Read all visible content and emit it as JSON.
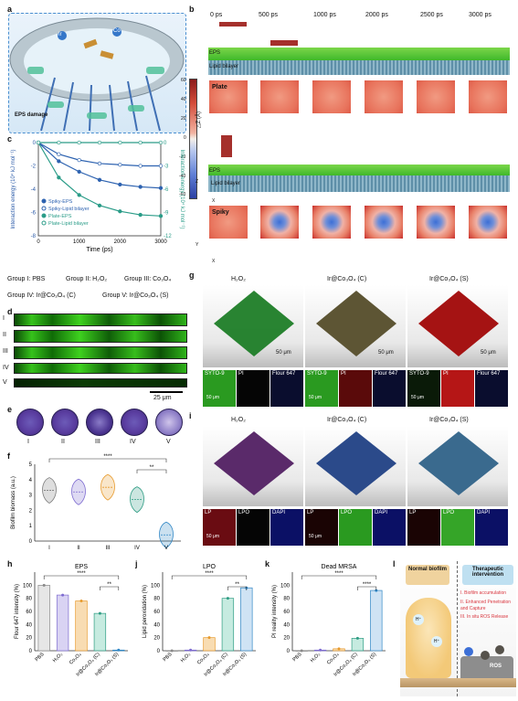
{
  "panels": {
    "a": "a",
    "b": "b",
    "c": "c",
    "d": "d",
    "e": "e",
    "f": "f",
    "g": "g",
    "h": "h",
    "i": "i",
    "j": "j",
    "k": "k",
    "l": "l"
  },
  "a": {
    "eps_damage_label": "EPS damage",
    "ion1": "Ir",
    "ion2": "Co"
  },
  "b": {
    "times": [
      "0 ps",
      "500 ps",
      "1000 ps",
      "2000 ps",
      "2500 ps",
      "3000 ps"
    ],
    "eps": "EPS",
    "lipid": "Lipid bilayer",
    "plate": "Plate",
    "spiky": "Spiky",
    "colorbar_label": "△Z (Å)",
    "colorbar_ticks": [
      "60",
      "40",
      "20",
      "0",
      "-20",
      "-40",
      "-60"
    ],
    "axis_z": "Z",
    "axis_x": "X",
    "axis_y": "Y"
  },
  "c": {
    "ylabel_left": "Interaction energy (10⁴ kJ mol⁻¹)",
    "ylabel_right": "Interaction energy (10⁴ kJ mol⁻¹)",
    "xlabel": "Time (ps)",
    "legend": [
      "Spiky-EPS",
      "Spiky-Lipid bilayer",
      "Plate-EPS",
      "Plate-Lipid bilayer"
    ],
    "xticks": [
      "0",
      "1000",
      "2000",
      "3000"
    ],
    "yticks_left": [
      "0",
      "-2",
      "-4",
      "-6",
      "-8"
    ],
    "yticks_right": [
      "0",
      "-3",
      "-6",
      "-9",
      "-12"
    ]
  },
  "groups": {
    "row1": [
      "Group I: PBS",
      "Group II: H₂O₂",
      "Group III: Co₃O₄"
    ],
    "row2": [
      "Group IV: Ir@Co₃O₄ (C)",
      "Group V: Ir@Co₃O₄ (S)"
    ]
  },
  "d": {
    "rows": [
      "I",
      "II",
      "III",
      "IV",
      "V"
    ],
    "scale": "25 μm"
  },
  "e": {
    "labels": [
      "I",
      "II",
      "III",
      "IV",
      "V"
    ]
  },
  "f": {
    "ylabel": "Biofilm biomass (a.u.)",
    "yticks": [
      "0",
      "1",
      "2",
      "3",
      "4",
      "5"
    ],
    "xlabels": [
      "I",
      "II",
      "III",
      "IV",
      "V"
    ],
    "sig1": "****",
    "sig2": "**",
    "colors": [
      "#7c7c7c",
      "#7d6bd0",
      "#e79a2c",
      "#2e9c83",
      "#2f86c5"
    ]
  },
  "g": {
    "titles": [
      "H₂O₂",
      "Ir@Co₃O₄ (C)",
      "Ir@Co₃O₄ (S)"
    ],
    "scale": "50 μm",
    "chips": [
      "SYTO-9",
      "PI",
      "Flour 647"
    ]
  },
  "i": {
    "titles": [
      "H₂O₂",
      "Ir@Co₃O₄ (C)",
      "Ir@Co₃O₄ (S)"
    ],
    "scale": "50 μm",
    "chips": [
      "LP",
      "LPO",
      "DAPI"
    ]
  },
  "h": {
    "title": "EPS",
    "ylabel": "Flour 647 intensity (%)",
    "yticks": [
      "0",
      "20",
      "40",
      "60",
      "80",
      "100"
    ],
    "xlabels": [
      "PBS",
      "H₂O₂",
      "Co₃O₄",
      "Ir@Co₃O₄ (C)",
      "Ir@Co₃O₄ (S)"
    ],
    "sig1": "****",
    "sig2": "**"
  },
  "j": {
    "title": "LPO",
    "ylabel": "Lipid peroxidation (%)",
    "yticks": [
      "0",
      "20",
      "40",
      "60",
      "80",
      "100"
    ],
    "xlabels": [
      "PBS",
      "H₂O₂",
      "Co₃O₄",
      "Ir@Co₃O₄ (C)",
      "Ir@Co₃O₄ (S)"
    ],
    "sig1": "****",
    "sig2": "**"
  },
  "k": {
    "title": "Dead MRSA",
    "ylabel": "PI reality intensity (%)",
    "yticks": [
      "0",
      "20",
      "40",
      "60",
      "80",
      "100"
    ],
    "xlabels": [
      "PBS",
      "H₂O₂",
      "Co₃O₄",
      "Ir@Co₃O₄ (C)",
      "Ir@Co₃O₄ (S)"
    ],
    "sig1": "****",
    "sig2": "****"
  },
  "l": {
    "normal": "Normal biofilm",
    "therapeutic": "Therapeutic intervention",
    "steps": [
      "I. Biofilm accumulation",
      "II. Enhanced Penetration and Capture",
      "III. In situ ROS Release"
    ],
    "hplus": "H⁺",
    "ros": "ROS"
  },
  "chart_data": [
    {
      "type": "line",
      "title": "",
      "xlabel": "Time (ps)",
      "ylabel": "Interaction energy (10⁴ kJ mol⁻¹)",
      "x": [
        0,
        500,
        1000,
        1500,
        2000,
        2500,
        3000
      ],
      "series": [
        {
          "name": "Spiky-EPS",
          "axis": "left",
          "values": [
            0,
            -1.6,
            -2.5,
            -3.2,
            -3.6,
            -3.8,
            -3.9
          ]
        },
        {
          "name": "Spiky-Lipid bilayer",
          "axis": "left",
          "values": [
            0,
            -1.0,
            -1.5,
            -1.8,
            -1.9,
            -2.0,
            -2.0
          ]
        },
        {
          "name": "Plate-EPS",
          "axis": "left",
          "values": [
            0,
            -3.0,
            -4.5,
            -5.4,
            -5.9,
            -6.2,
            -6.3
          ]
        },
        {
          "name": "Plate-Lipid bilayer",
          "axis": "right",
          "values": [
            0,
            0,
            0,
            0,
            0,
            0,
            0
          ]
        }
      ],
      "ylim_left": [
        -8,
        0
      ],
      "ylim_right": [
        -12,
        0
      ],
      "xlim": [
        0,
        3000
      ]
    },
    {
      "type": "violin",
      "ylabel": "Biofilm biomass (a.u.)",
      "categories": [
        "I",
        "II",
        "III",
        "IV",
        "V"
      ],
      "values": [
        3.3,
        3.2,
        3.5,
        2.7,
        0.4
      ],
      "ylim": [
        0,
        5
      ]
    },
    {
      "type": "bar",
      "title": "EPS",
      "ylabel": "Flour 647 intensity (%)",
      "categories": [
        "PBS",
        "H₂O₂",
        "Co₃O₄",
        "Ir@Co₃O₄ (C)",
        "Ir@Co₃O₄ (S)"
      ],
      "values": [
        100,
        85,
        76,
        57,
        1
      ],
      "ylim": [
        0,
        120
      ]
    },
    {
      "type": "bar",
      "title": "LPO",
      "ylabel": "Lipid peroxidation (%)",
      "categories": [
        "PBS",
        "H₂O₂",
        "Co₃O₄",
        "Ir@Co₃O₄ (C)",
        "Ir@Co₃O₄ (S)"
      ],
      "values": [
        0,
        1,
        20,
        80,
        96
      ],
      "ylim": [
        0,
        120
      ]
    },
    {
      "type": "bar",
      "title": "Dead MRSA",
      "ylabel": "PI reality intensity (%)",
      "categories": [
        "PBS",
        "H₂O₂",
        "Co₃O₄",
        "Ir@Co₃O₄ (C)",
        "Ir@Co₃O₄ (S)"
      ],
      "values": [
        0,
        1,
        3,
        19,
        92
      ],
      "ylim": [
        0,
        120
      ]
    }
  ]
}
